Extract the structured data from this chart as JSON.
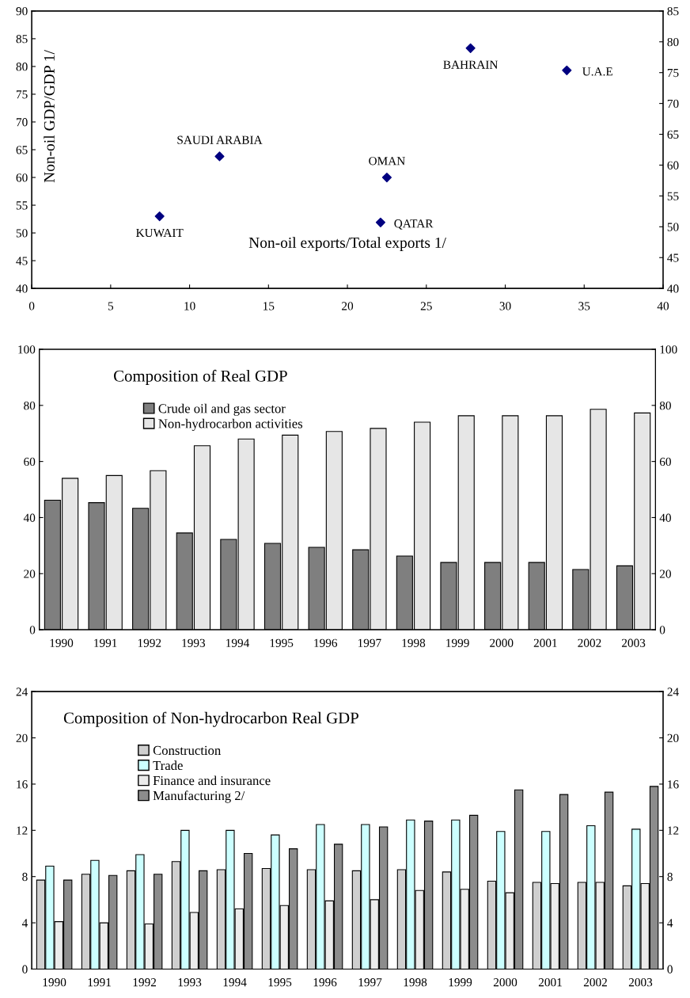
{
  "chart_data": [
    {
      "type": "scatter",
      "xlabel": "Non-oil exports/Total exports 1/",
      "ylabel": "Non-oil GDP/GDP 1/",
      "x": [
        8.1,
        11.9,
        22.1,
        22.5,
        27.8,
        33.9
      ],
      "series": [
        {
          "color": "#000080",
          "values": [
            53,
            63.8,
            51.9,
            60,
            83.3,
            79.3
          ]
        }
      ],
      "marker": "diamond",
      "xlim": [
        0,
        40
      ],
      "xticks": [
        0,
        5,
        10,
        15,
        20,
        25,
        30,
        35,
        40
      ],
      "ylim": [
        40,
        90
      ],
      "yticks": [
        40,
        45,
        50,
        55,
        60,
        65,
        70,
        75,
        80,
        85,
        90
      ],
      "y2lim": [
        40,
        85
      ],
      "y2ticks": [
        40,
        45,
        50,
        55,
        60,
        65,
        70,
        75,
        80,
        85
      ],
      "grid": false,
      "legend": false,
      "annotations": [
        {
          "text": "KUWAIT",
          "x": 8.1,
          "y": 53
        },
        {
          "text": "SAUDI ARABIA",
          "x": 11.9,
          "y": 63.8
        },
        {
          "text": "QATAR",
          "x": 22.1,
          "y": 51.9
        },
        {
          "text": "OMAN",
          "x": 22.5,
          "y": 60
        },
        {
          "text": "BAHRAIN",
          "x": 27.8,
          "y": 83.3
        },
        {
          "text": "U.A.E",
          "x": 33.9,
          "y": 79.3
        }
      ]
    },
    {
      "type": "bar",
      "title": "Composition of Real GDP",
      "categories": [
        "1990",
        "1991",
        "1992",
        "1993",
        "1994",
        "1995",
        "1996",
        "1997",
        "1998",
        "1999",
        "2000",
        "2001",
        "2002",
        "2003"
      ],
      "series": [
        {
          "name": "Crude oil and gas sector",
          "color": "#7f7f7f",
          "values": [
            46.2,
            45.3,
            43.3,
            34.5,
            32.2,
            30.8,
            29.4,
            28.5,
            26.3,
            24.0,
            24.0,
            24.0,
            21.5,
            22.8
          ]
        },
        {
          "name": "Non-hydrocarbon activities",
          "color": "#e6e6e6",
          "values": [
            54.0,
            55.0,
            56.7,
            65.6,
            68.0,
            69.4,
            70.7,
            71.8,
            74.0,
            76.3,
            76.3,
            76.3,
            78.6,
            77.3
          ]
        }
      ],
      "ylim": [
        0,
        100
      ],
      "yticks": [
        0,
        20,
        40,
        60,
        80,
        100
      ],
      "y2lim": [
        0,
        100
      ],
      "y2ticks": [
        0,
        20,
        40,
        60,
        80,
        100
      ],
      "grid": false,
      "legend": "top left"
    },
    {
      "type": "bar",
      "title": "Composition of Non-hydrocarbon Real GDP",
      "categories": [
        "1990",
        "1991",
        "1992",
        "1993",
        "1994",
        "1995",
        "1996",
        "1997",
        "1998",
        "1999",
        "2000",
        "2001",
        "2002",
        "2003"
      ],
      "series": [
        {
          "name": "Construction",
          "color": "#cfcfcf",
          "values": [
            7.7,
            8.2,
            8.5,
            9.3,
            8.6,
            8.7,
            8.6,
            8.5,
            8.6,
            8.4,
            7.6,
            7.5,
            7.5,
            7.2
          ]
        },
        {
          "name": "Trade",
          "color": "#ccffff",
          "values": [
            8.9,
            9.4,
            9.9,
            12.0,
            12.0,
            11.6,
            12.5,
            12.5,
            12.9,
            12.9,
            11.9,
            11.9,
            12.4,
            12.1
          ]
        },
        {
          "name": "Finance and insurance",
          "color": "#ebebeb",
          "values": [
            4.1,
            4.0,
            3.9,
            4.9,
            5.2,
            5.5,
            5.9,
            6.0,
            6.8,
            6.9,
            6.6,
            7.4,
            7.5,
            7.4
          ]
        },
        {
          "name": "Manufacturing 2/",
          "color": "#8c8c8c",
          "values": [
            7.7,
            8.1,
            8.2,
            8.5,
            10.0,
            10.4,
            10.8,
            12.3,
            12.8,
            13.3,
            15.5,
            15.1,
            15.3,
            15.8
          ]
        }
      ],
      "ylim": [
        0,
        24
      ],
      "yticks": [
        0,
        4,
        8,
        12,
        16,
        20,
        24
      ],
      "y2lim": [
        0,
        24
      ],
      "y2ticks": [
        0,
        4,
        8,
        12,
        16,
        20,
        24
      ],
      "grid": false,
      "legend": "top left"
    }
  ]
}
